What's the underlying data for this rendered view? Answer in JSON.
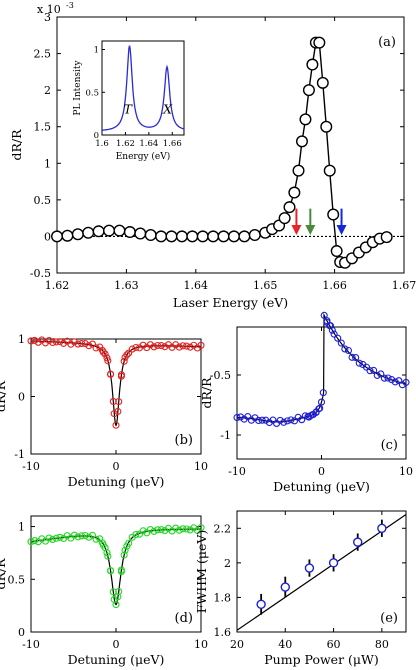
{
  "chart_data": [
    {
      "id": "a",
      "type": "scatter",
      "panel_label": "(a)",
      "xlabel": "Laser Energy (eV)",
      "ylabel": "dR/R",
      "exponent_label": "x 10",
      "exponent_power": "-3",
      "xlim": [
        1.62,
        1.67
      ],
      "ylim": [
        -0.5,
        3
      ],
      "xticks": [
        "1.62",
        "1.63",
        "1.64",
        "1.65",
        "1.66",
        "1.67"
      ],
      "yticks": [
        "-0.5",
        "0",
        "0.5",
        "1",
        "1.5",
        "2",
        "2.5",
        "3"
      ],
      "zero_line": "dotted",
      "series": [
        {
          "marker": "open-circle",
          "line": "black",
          "x": [
            1.62,
            1.6215,
            1.623,
            1.6245,
            1.626,
            1.6275,
            1.629,
            1.6305,
            1.632,
            1.6335,
            1.635,
            1.6365,
            1.638,
            1.6395,
            1.641,
            1.6425,
            1.644,
            1.6455,
            1.647,
            1.6485,
            1.65,
            1.651,
            1.652,
            1.6528,
            1.6535,
            1.6542,
            1.6548,
            1.6553,
            1.6558,
            1.6563,
            1.6568,
            1.6573,
            1.6578,
            1.6583,
            1.6588,
            1.6593,
            1.6598,
            1.6603,
            1.6608,
            1.6615,
            1.6625,
            1.6635,
            1.6645,
            1.6655,
            1.6665,
            1.6675
          ],
          "y": [
            0.0,
            0.01,
            0.03,
            0.05,
            0.07,
            0.08,
            0.08,
            0.06,
            0.04,
            0.02,
            0.0,
            0.0,
            0.0,
            0.0,
            0.0,
            0.0,
            0.0,
            0.0,
            0.0,
            0.02,
            0.05,
            0.1,
            0.15,
            0.25,
            0.4,
            0.6,
            0.9,
            1.3,
            1.6,
            2.0,
            2.35,
            2.65,
            2.65,
            2.1,
            1.5,
            0.9,
            0.3,
            -0.2,
            -0.35,
            -0.36,
            -0.3,
            -0.22,
            -0.15,
            -0.08,
            -0.03,
            -0.01
          ]
        }
      ],
      "arrows": [
        {
          "x": 1.6545,
          "color": "#e8232a"
        },
        {
          "x": 1.6565,
          "color": "#4a8a3a"
        },
        {
          "x": 1.661,
          "color": "#1428d8"
        }
      ],
      "inset": {
        "type": "line",
        "xlabel": "Energy (eV)",
        "ylabel": "PL Intensity",
        "xlim": [
          1.6,
          1.67
        ],
        "ylim": [
          0,
          1.1
        ],
        "xticks": [
          "1.6",
          "1.62",
          "1.64",
          "1.66"
        ],
        "yticks": [
          "0",
          "0.5",
          "1"
        ],
        "color": "#2a2ad8",
        "peak_labels": [
          {
            "text": "T",
            "x": 1.622,
            "y": 0.25
          },
          {
            "text": "X",
            "x": 1.656,
            "y": 0.25
          }
        ],
        "peaks": [
          {
            "center": 1.6235,
            "amplitude": 1.0,
            "width": 0.0028
          },
          {
            "center": 1.6555,
            "amplitude": 0.75,
            "width": 0.0028
          }
        ],
        "baseline": 0.04
      }
    },
    {
      "id": "b",
      "type": "scatter",
      "panel_label": "(b)",
      "xlabel": "Detuning (μeV)",
      "ylabel": "dR/R",
      "xlim": [
        -10,
        10
      ],
      "ylim": [
        -1,
        1
      ],
      "xticks": [
        "-10",
        "0",
        "10"
      ],
      "yticks": [
        "-1",
        "0",
        "1"
      ],
      "marker_color": "#e82020",
      "fit": {
        "baseline": 0.92,
        "depth": 1.42,
        "center": 0,
        "gamma": 0.5,
        "slope": -0.005
      }
    },
    {
      "id": "c",
      "type": "scatter",
      "panel_label": "(c)",
      "xlabel": "Detuning (μeV)",
      "ylabel": "dR/R",
      "xlim": [
        -10,
        10
      ],
      "ylim": [
        -1.2,
        -0.1
      ],
      "xticks": [
        "-10",
        "0",
        "10"
      ],
      "yticks": [
        "-0.5",
        "-1"
      ],
      "marker_color": "#1e1ed8",
      "fit": {
        "baseline": -0.85,
        "amp": 0.65,
        "center": 0.3,
        "decay": 4.5
      }
    },
    {
      "id": "d",
      "type": "scatter",
      "panel_label": "(d)",
      "xlabel": "Detuning (μeV)",
      "ylabel": "dR/R",
      "xlim": [
        -10,
        10
      ],
      "ylim": [
        0,
        1.1
      ],
      "xticks": [
        "-10",
        "0",
        "10"
      ],
      "yticks": [
        "0",
        "0.5",
        "1"
      ],
      "marker_color": "#22d822",
      "fit": {
        "baseline": 0.98,
        "depth": 0.72,
        "center": 0,
        "gamma": 0.7,
        "left_drop": 0.12
      }
    },
    {
      "id": "e",
      "type": "scatter",
      "panel_label": "(e)",
      "xlabel": "Pump Power (μW)",
      "ylabel": "FWHM (μeV)",
      "xlim": [
        20,
        90
      ],
      "ylim": [
        1.6,
        2.3
      ],
      "xticks": [
        "20",
        "40",
        "60",
        "80"
      ],
      "yticks": [
        "1.6",
        "1.8",
        "2",
        "2.2"
      ],
      "marker_color": "#1e1ed8",
      "points": [
        {
          "x": 30,
          "y": 1.76,
          "err": 0.06
        },
        {
          "x": 40,
          "y": 1.86,
          "err": 0.06
        },
        {
          "x": 50,
          "y": 1.97,
          "err": 0.05
        },
        {
          "x": 60,
          "y": 2.0,
          "err": 0.05
        },
        {
          "x": 70,
          "y": 2.12,
          "err": 0.05
        },
        {
          "x": 80,
          "y": 2.2,
          "err": 0.05
        }
      ],
      "fit_line": {
        "x": [
          20,
          90
        ],
        "y": [
          1.61,
          2.28
        ]
      }
    }
  ]
}
